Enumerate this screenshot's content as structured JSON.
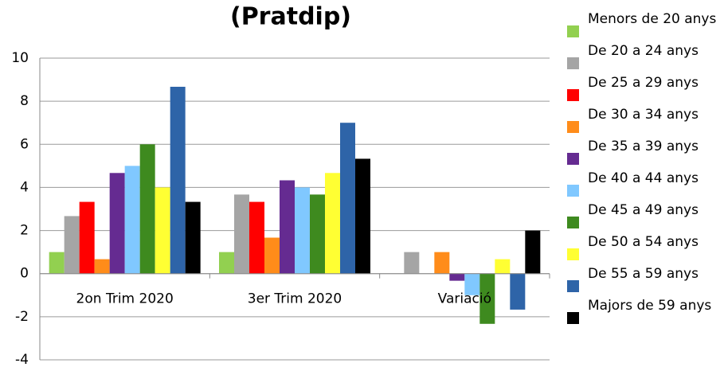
{
  "chart_data": {
    "type": "bar",
    "title": "(Pratdip)",
    "categories": [
      "2on Trim 2020",
      "3er Trim 2020",
      "Variació"
    ],
    "ylim": [
      -4,
      10
    ],
    "yticks": [
      -4,
      -2,
      0,
      2,
      4,
      6,
      8,
      10
    ],
    "grid": true,
    "series": [
      {
        "name": "Menors de 20 anys",
        "color": "#92d050",
        "values": [
          1,
          1,
          0
        ]
      },
      {
        "name": "De 20 a 24 anys",
        "color": "#a5a5a5",
        "values": [
          2.67,
          3.67,
          1
        ]
      },
      {
        "name": "De 25 a 29 anys",
        "color": "#ff0000",
        "values": [
          3.33,
          3.33,
          0
        ]
      },
      {
        "name": "De 30 a 34 anys",
        "color": "#ff8c1a",
        "values": [
          0.67,
          1.67,
          1
        ]
      },
      {
        "name": "De 35 a 39 anys",
        "color": "#652b91",
        "values": [
          4.67,
          4.33,
          -0.33
        ]
      },
      {
        "name": "De 40 a 44 anys",
        "color": "#80c8ff",
        "values": [
          5,
          4,
          -1
        ]
      },
      {
        "name": "De 45 a 49 anys",
        "color": "#3e8a1f",
        "values": [
          6,
          3.67,
          -2.33
        ]
      },
      {
        "name": "De 50 a 54 anys",
        "color": "#ffff33",
        "values": [
          4,
          4.67,
          0.67
        ]
      },
      {
        "name": "De 55 a 59 anys",
        "color": "#2e64a8",
        "values": [
          8.67,
          7,
          -1.67
        ]
      },
      {
        "name": "Majors de 59 anys",
        "color": "#000000",
        "values": [
          3.33,
          5.33,
          2
        ]
      }
    ]
  }
}
